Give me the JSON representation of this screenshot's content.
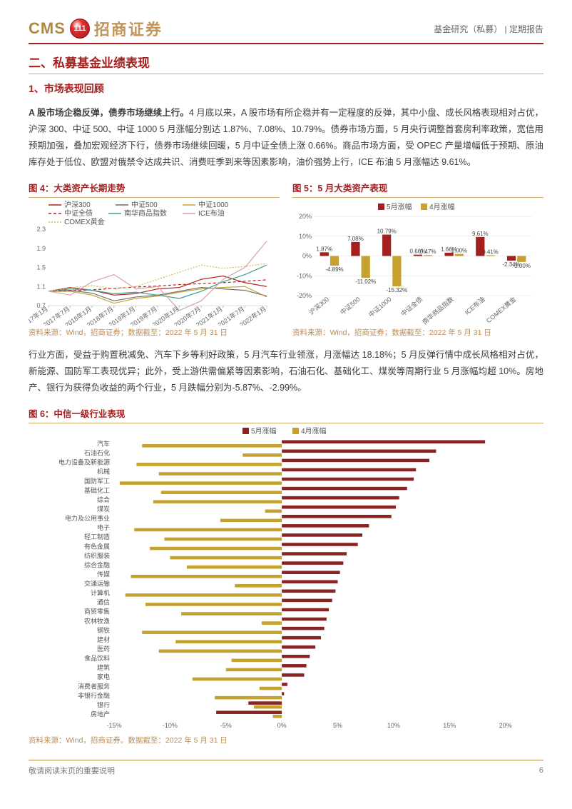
{
  "header": {
    "cms": "CMS",
    "logo_glyph": "111",
    "cn": "招商证券",
    "right": "基金研究（私募） | 定期报告"
  },
  "section2": {
    "title": "二、私募基金业绩表现",
    "sub1": "1、市场表现回顾",
    "para1_bold": "A 股市场企稳反弹，债券市场继续上行。",
    "para1_rest": "4 月底以来，A 股市场有所企稳并有一定程度的反弹，其中小盘、成长风格表现相对占优，沪深 300、中证 500、中证 1000 5 月涨幅分别达 1.87%、7.08%、10.79%。债券市场方面，5 月央行调整首套房利率政策，宽信用预期加强，叠加宏观经济下行，债券市场继续回暖，5 月中证全债上涨 0.66%。商品市场方面，受 OPEC 产量增幅低于预期、原油库存处于低位、欧盟对俄禁令达成共识、消费旺季到来等因素影响，油价强势上行，ICE 布油 5 月涨幅达 9.61%。",
    "para2": "行业方面，受益于购置税减免、汽车下乡等利好政策，5 月汽车行业领涨，月涨幅达 18.18%；5 月反弹行情中成长风格相对占优，新能源、国防军工表现优异；此外，受上游供需偏紧等因素影响，石油石化、基础化工、煤炭等周期行业 5 月涨幅均超 10%。房地产、银行为获得负收益的两个行业，5 月跌幅分别为-5.87%、-2.99%。"
  },
  "fig4": {
    "title": "图 4：大类资产长期走势",
    "source": "资料来源：Wind，招商证券；数据截至：2022 年 5 月 31 日",
    "y_ticks": [
      "0.7",
      "1.1",
      "1.5",
      "1.9",
      "2.3"
    ],
    "x_ticks": [
      "2017年1月",
      "2017年7月",
      "2018年1月",
      "2018年7月",
      "2019年1月",
      "2019年7月",
      "2020年1月",
      "2020年7月",
      "2021年1月",
      "2021年7月",
      "2022年1月"
    ],
    "series": [
      {
        "name": "沪深300",
        "color": "#b02418",
        "dash": "",
        "path": [
          1,
          1.08,
          1.02,
          0.92,
          0.95,
          1.05,
          1.08,
          1.25,
          1.32,
          1.18,
          1.1
        ]
      },
      {
        "name": "中证500",
        "color": "#6f6f6f",
        "dash": "",
        "path": [
          1,
          1.02,
          0.96,
          0.8,
          0.88,
          0.92,
          1.0,
          1.08,
          1.05,
          1.02,
          0.9
        ]
      },
      {
        "name": "中证1000",
        "color": "#c5a22f",
        "dash": "",
        "path": [
          1,
          1.0,
          0.92,
          0.75,
          0.85,
          0.9,
          0.98,
          1.05,
          1.08,
          1.1,
          0.88
        ]
      },
      {
        "name": "中证全债",
        "color": "#b02418",
        "dash": "4,3",
        "path": [
          1,
          1.01,
          1.03,
          1.06,
          1.09,
          1.11,
          1.14,
          1.16,
          1.18,
          1.21,
          1.24
        ]
      },
      {
        "name": "南华商品指数",
        "color": "#3e9d8e",
        "dash": "",
        "path": [
          1,
          1.05,
          1.02,
          0.95,
          0.98,
          0.92,
          0.85,
          1.0,
          1.2,
          1.35,
          1.55
        ]
      },
      {
        "name": "ICE布油",
        "color": "#d99fb2",
        "dash": "",
        "path": [
          1,
          0.92,
          1.2,
          1.35,
          1.05,
          1.1,
          0.6,
          0.8,
          1.25,
          1.5,
          2.05
        ]
      },
      {
        "name": "COMEX黄金",
        "color": "#d8b85a",
        "dash": "2,2",
        "path": [
          1,
          1.07,
          1.12,
          1.05,
          1.1,
          1.25,
          1.4,
          1.55,
          1.48,
          1.52,
          1.58
        ]
      }
    ]
  },
  "fig5": {
    "title": "图 5：5 月大类资产表现",
    "source": "资料来源：Wind，招商证券；数据截至：2022 年 5 月 31 日",
    "legend": [
      {
        "label": "5月涨幅",
        "color": "#a42020"
      },
      {
        "label": "4月涨幅",
        "color": "#c5a22f"
      }
    ],
    "y_ticks": [
      "-20%",
      "-10%",
      "0%",
      "10%",
      "20%"
    ],
    "categories": [
      "沪深300",
      "中证500",
      "中证1000",
      "中证全债",
      "南华商品指数",
      "ICE布油",
      "COMEX黄金"
    ],
    "may": [
      1.87,
      7.08,
      10.79,
      0.66,
      1.66,
      9.61,
      -2.34
    ],
    "apr": [
      -4.89,
      -11.02,
      -15.32,
      0.47,
      1.0,
      0.41,
      -3.0
    ],
    "may_labels": [
      "1.87%",
      "7.08%",
      "10.79%",
      "0.66%",
      "1.66%",
      "9.61%",
      "-2.34%"
    ],
    "apr_labels": [
      "-4.89%",
      "-11.02%",
      "-15.32%",
      "0.47%",
      "1.00%",
      "0.41%",
      "-3.00%"
    ]
  },
  "fig6": {
    "title": "图 6：中信一级行业表现",
    "source": "资料来源：Wind，招商证券。数据截至：2022 年 5 月 31 日",
    "legend": [
      {
        "label": "5月涨幅",
        "color": "#8a2424"
      },
      {
        "label": "4月涨幅",
        "color": "#c5a22f"
      }
    ],
    "x_ticks": [
      "-15%",
      "-10%",
      "-5%",
      "0%",
      "5%",
      "10%",
      "15%",
      "20%"
    ],
    "rows": [
      {
        "name": "汽车",
        "may": 18.18,
        "apr": -12.5
      },
      {
        "name": "石油石化",
        "may": 13.8,
        "apr": -3.5
      },
      {
        "name": "电力设备及新能源",
        "may": 13.2,
        "apr": -13.0
      },
      {
        "name": "机械",
        "may": 12.0,
        "apr": -11.0
      },
      {
        "name": "国防军工",
        "may": 11.8,
        "apr": -14.5
      },
      {
        "name": "基础化工",
        "may": 11.2,
        "apr": -10.8
      },
      {
        "name": "综合",
        "may": 10.5,
        "apr": -11.5
      },
      {
        "name": "煤炭",
        "may": 10.2,
        "apr": -1.5
      },
      {
        "name": "电力及公用事业",
        "may": 9.8,
        "apr": -5.5
      },
      {
        "name": "电子",
        "may": 7.8,
        "apr": -13.2
      },
      {
        "name": "轻工制造",
        "may": 7.2,
        "apr": -10.5
      },
      {
        "name": "有色金属",
        "may": 6.8,
        "apr": -11.8
      },
      {
        "name": "纺织服装",
        "may": 5.8,
        "apr": -10.0
      },
      {
        "name": "综合金融",
        "may": 5.5,
        "apr": -8.5
      },
      {
        "name": "传媒",
        "may": 5.2,
        "apr": -13.5
      },
      {
        "name": "交通运输",
        "may": 5.0,
        "apr": -4.2
      },
      {
        "name": "计算机",
        "may": 4.8,
        "apr": -14.0
      },
      {
        "name": "通信",
        "may": 4.5,
        "apr": -12.2
      },
      {
        "name": "商贸零售",
        "may": 4.2,
        "apr": -9.0
      },
      {
        "name": "农林牧渔",
        "may": 4.0,
        "apr": -1.8
      },
      {
        "name": "钢铁",
        "may": 3.8,
        "apr": -12.5
      },
      {
        "name": "建材",
        "may": 3.5,
        "apr": -9.5
      },
      {
        "name": "医药",
        "may": 3.0,
        "apr": -11.0
      },
      {
        "name": "食品饮料",
        "may": 2.5,
        "apr": -4.5
      },
      {
        "name": "建筑",
        "may": 2.2,
        "apr": -5.0
      },
      {
        "name": "家电",
        "may": 2.0,
        "apr": -8.0
      },
      {
        "name": "消费者服务",
        "may": 0.5,
        "apr": -2.0
      },
      {
        "name": "非银行金融",
        "may": 0.2,
        "apr": -6.0
      },
      {
        "name": "银行",
        "may": -2.99,
        "apr": -2.5
      },
      {
        "name": "房地产",
        "may": -5.87,
        "apr": -0.8
      }
    ]
  },
  "footer": {
    "left": "敬请阅读末页的重要说明",
    "page": "6"
  }
}
